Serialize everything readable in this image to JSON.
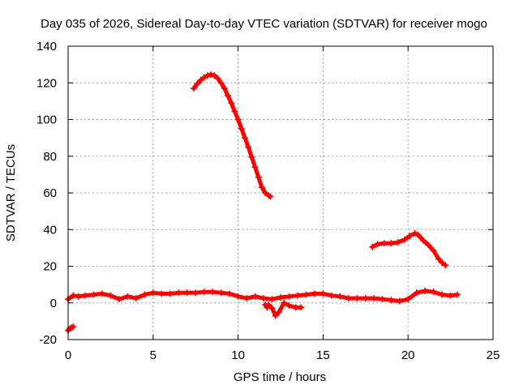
{
  "chart_data": {
    "type": "scatter",
    "title": "Day 035 of 2026, Sidereal Day-to-day VTEC variation (SDTVAR) for receiver mogo",
    "xlabel": "GPS time / hours",
    "ylabel": "SDTVAR / TECUs",
    "xlim": [
      0,
      25
    ],
    "ylim": [
      -20,
      140
    ],
    "x_ticks": [
      0,
      5,
      10,
      15,
      20,
      25
    ],
    "x_tick_labels": [
      "0",
      "5",
      "10",
      "15",
      "20",
      "25"
    ],
    "y_ticks": [
      -20,
      0,
      20,
      40,
      60,
      80,
      100,
      120,
      140
    ],
    "y_tick_labels": [
      "-20",
      "0",
      "20",
      "40",
      "60",
      "80",
      "100",
      "120",
      "140"
    ],
    "grid": true,
    "legend": "none",
    "marker": "plus",
    "series": [
      {
        "name": "arc high peak",
        "color": "#ff0000",
        "x": [
          7.4,
          7.6,
          7.8,
          8.0,
          8.2,
          8.4,
          8.6,
          8.8,
          9.0,
          9.2,
          9.4,
          9.6,
          9.8,
          10.0,
          10.2,
          10.4,
          10.6,
          10.8,
          11.0,
          11.2,
          11.4,
          11.6,
          11.8,
          11.9
        ],
        "y": [
          117,
          119.5,
          121.5,
          123,
          124,
          124.5,
          124,
          122.5,
          120,
          117,
          113,
          109,
          104.5,
          100,
          95,
          90,
          85,
          79.5,
          74,
          68.5,
          63,
          60,
          58.5,
          58
        ]
      },
      {
        "name": "arc late",
        "color": "#ff0000",
        "x": [
          17.9,
          18.2,
          18.6,
          19.0,
          19.4,
          19.8,
          20.1,
          20.4,
          20.6,
          20.9,
          21.2,
          21.5,
          21.8,
          22.0,
          22.2
        ],
        "y": [
          30.5,
          32,
          32.5,
          32.5,
          33,
          34.5,
          36.5,
          38,
          37,
          34,
          31.5,
          28.5,
          24,
          22,
          20.5
        ]
      },
      {
        "name": "baseline",
        "color": "#ff0000",
        "x": [
          0.0,
          0.3,
          0.6,
          1.0,
          1.5,
          2.0,
          2.5,
          3.0,
          3.5,
          4.0,
          4.5,
          5.0,
          5.5,
          6.0,
          6.5,
          7.0,
          7.5,
          8.0,
          8.5,
          9.0,
          9.5,
          10.0,
          10.5,
          11.0,
          11.5,
          12.0,
          12.5,
          13.0,
          13.5,
          14.0,
          14.5,
          15.0,
          15.5,
          16.0,
          16.5,
          17.0,
          17.5,
          18.0,
          18.5,
          19.0,
          19.5,
          20.0,
          20.5,
          21.0,
          21.5,
          22.0,
          22.5,
          22.9
        ],
        "y": [
          2,
          4,
          3.5,
          4,
          4.5,
          5,
          4,
          2,
          3.5,
          2.5,
          4.5,
          5.5,
          5,
          5,
          5.5,
          5.5,
          5.5,
          6,
          6,
          5.5,
          5,
          3.5,
          2.5,
          3.5,
          2.5,
          2,
          3,
          3.5,
          4,
          4.5,
          5,
          5,
          4,
          3.5,
          2.5,
          2.5,
          2.5,
          2.5,
          2,
          1.5,
          1,
          2,
          5.5,
          6.5,
          6,
          4.5,
          4,
          4.5
        ]
      },
      {
        "name": "dips",
        "color": "#ff0000",
        "x": [
          11.6,
          11.7,
          11.8,
          12.0,
          12.2,
          12.4,
          12.7,
          13.0,
          13.4,
          13.7
        ],
        "y": [
          -1,
          -2.5,
          -1,
          -3,
          -7,
          -5,
          0,
          -1.5,
          -2.5,
          -2.5
        ]
      },
      {
        "name": "start negative",
        "color": "#ff0000",
        "x": [
          0.0,
          0.1,
          0.2,
          0.3
        ],
        "y": [
          -15,
          -14,
          -13.5,
          -13
        ]
      }
    ]
  }
}
